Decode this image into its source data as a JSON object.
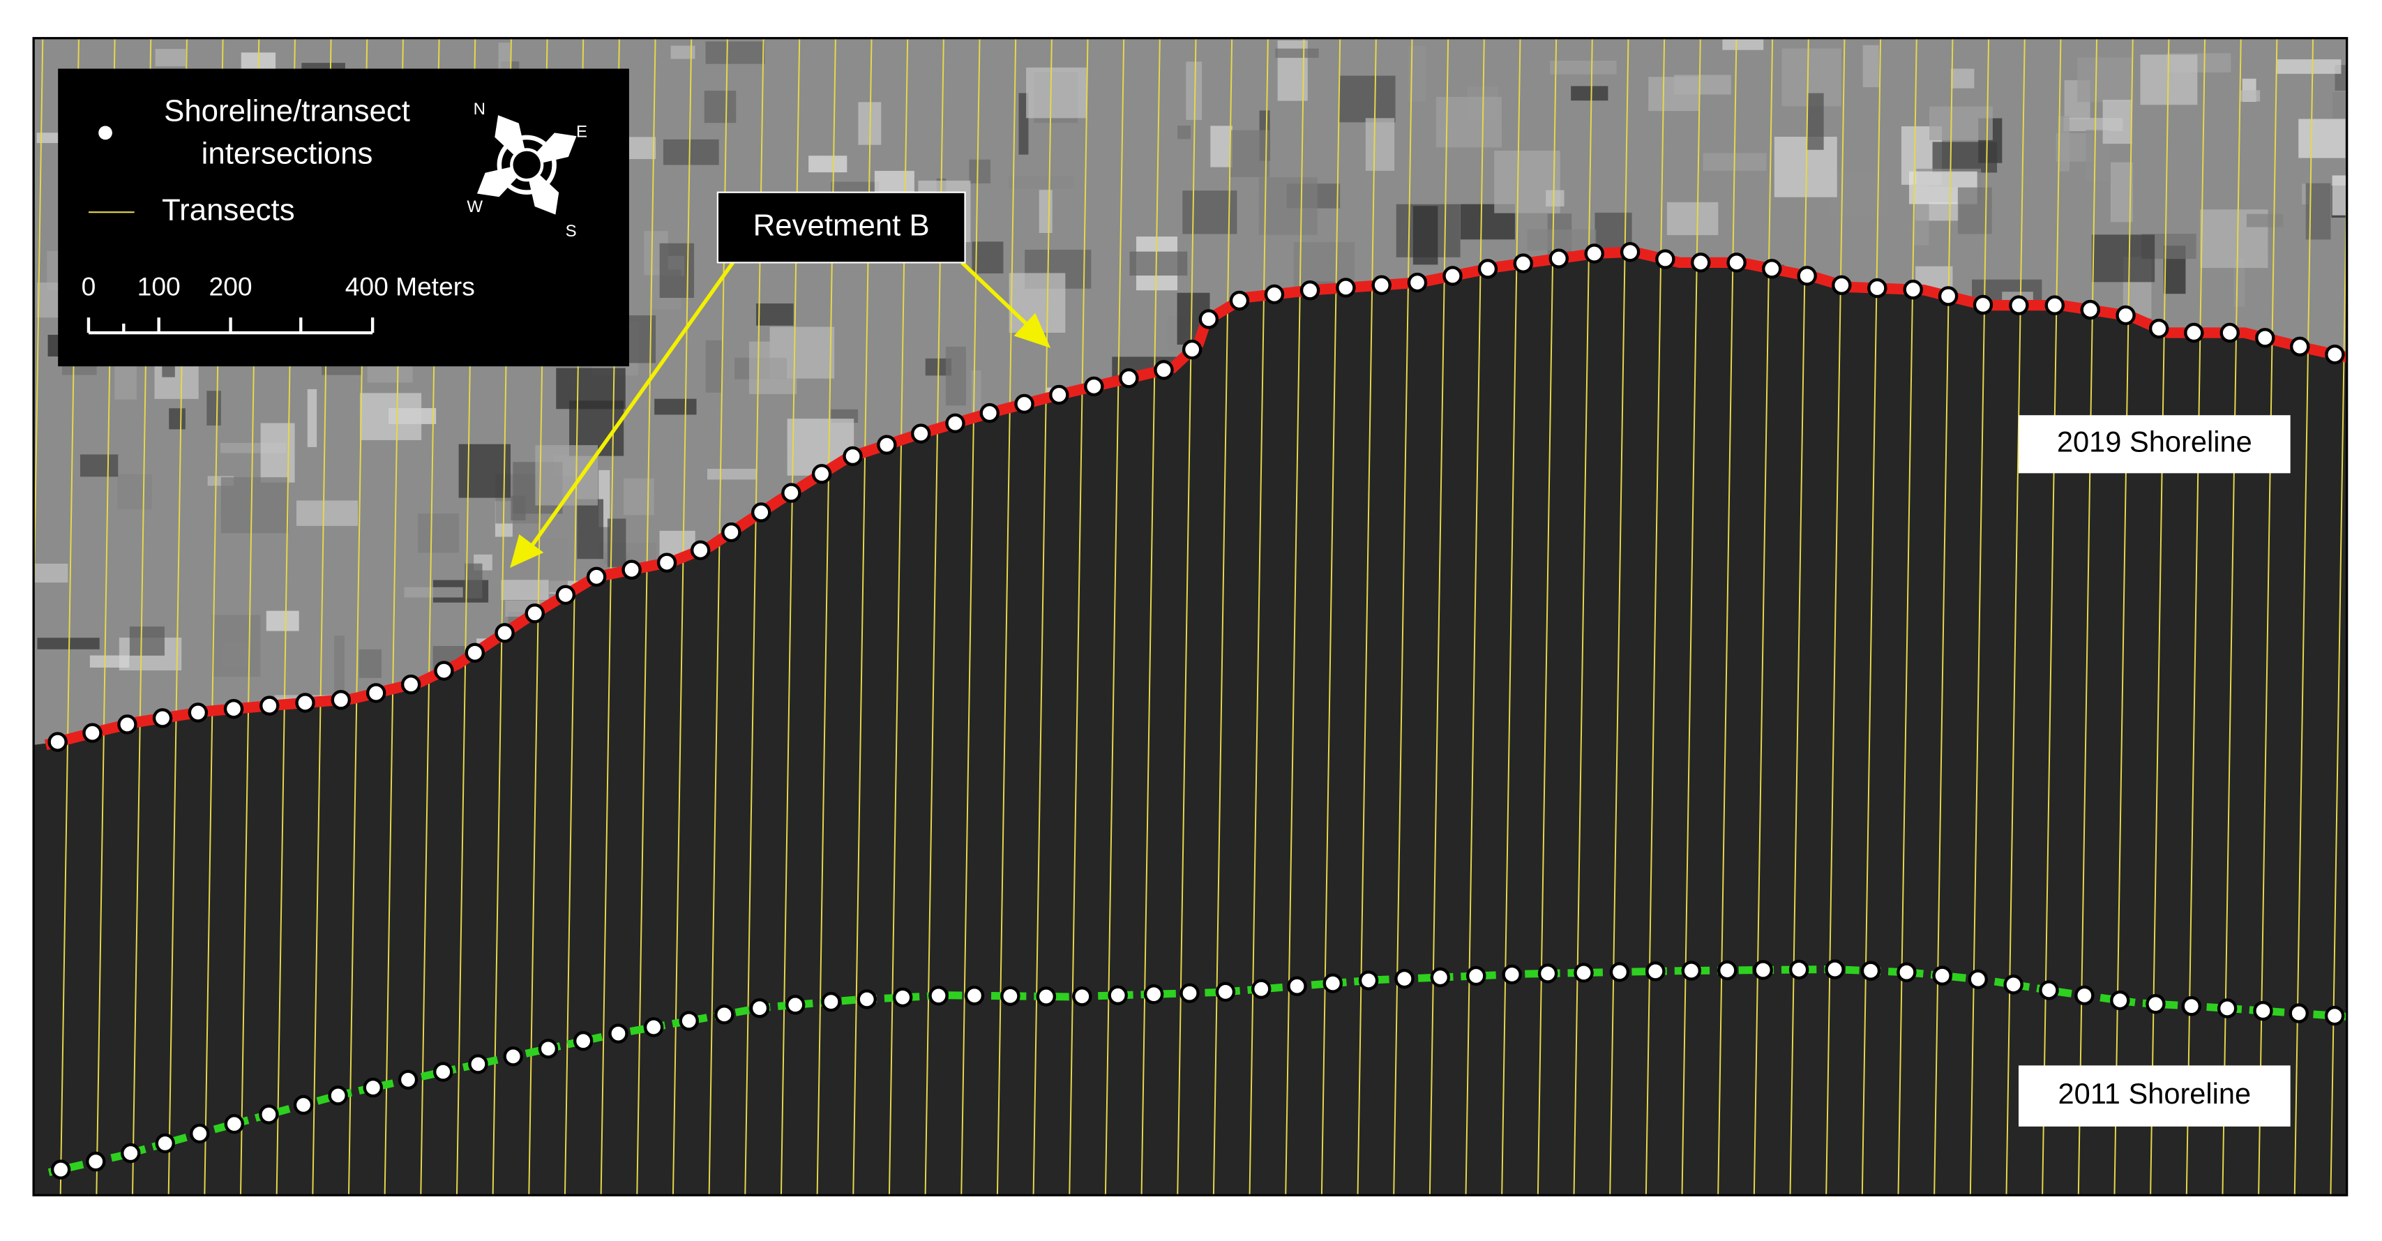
{
  "legend": {
    "items": [
      {
        "lines": [
          "Shoreline/transect",
          "intersections"
        ]
      },
      {
        "lines": [
          "Transects"
        ]
      }
    ]
  },
  "compass": {
    "north": "N",
    "east": "E",
    "south": "S",
    "west": "W"
  },
  "scale_bar": {
    "labels": [
      "0",
      "100",
      "200",
      "400 Meters"
    ]
  },
  "annotations": {
    "revetment": "Revetment B",
    "shoreline_2019": "2019 Shoreline",
    "shoreline_2011": "2011 Shoreline"
  }
}
